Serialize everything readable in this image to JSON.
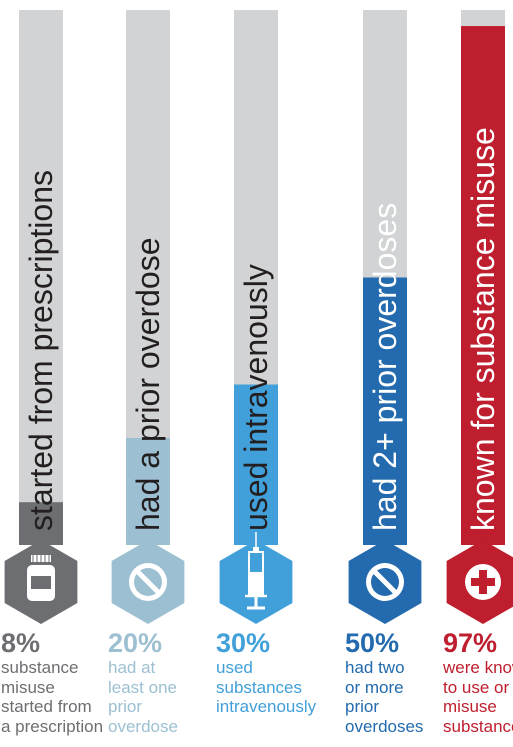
{
  "chart_data": {
    "type": "bar",
    "orientation": "vertical",
    "title": "",
    "ylim": [
      0,
      100
    ],
    "series": [
      {
        "name": "",
        "values": [
          8,
          20,
          30,
          50,
          97
        ]
      }
    ],
    "items": [
      {
        "bar_label": "started from prescriptions",
        "percent": 8,
        "percent_label": "8%",
        "description": "substance\nmisuse\nstarted from\na prescription",
        "color": "#6d6e71",
        "icon": "pill-bottle-icon"
      },
      {
        "bar_label": "had a prior overdose",
        "percent": 20,
        "percent_label": "20%",
        "description": "had at\nleast one\nprior\noverdose",
        "color": "#9cc0d2",
        "icon": "no-symbol-icon"
      },
      {
        "bar_label": "used intravenously",
        "percent": 30,
        "percent_label": "30%",
        "description": "used\nsubstances\nintravenously",
        "color": "#41a0d9",
        "icon": "syringe-icon"
      },
      {
        "bar_label": "had 2+ prior overdoses",
        "percent": 50,
        "percent_label": "50%",
        "description": "had two\nor more\nprior\noverdoses",
        "color": "#236bae",
        "icon": "no-symbol-icon"
      },
      {
        "bar_label": "known for substance misuse",
        "percent": 97,
        "percent_label": "97%",
        "description": "were known\nto use or\nmisuse\nsubstances",
        "color": "#be1e2d",
        "icon": "medical-cross-icon"
      }
    ],
    "track_color": "#d1d3d4",
    "grid": false,
    "legend": "none"
  }
}
